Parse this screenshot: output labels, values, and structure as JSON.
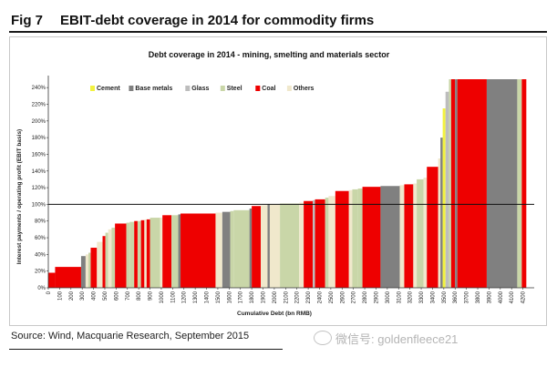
{
  "header": {
    "fig_num": "Fig 7",
    "fig_title": "EBIT-debt coverage in 2014 for commodity firms"
  },
  "footer": {
    "source": "Source: Wind, Macquarie Research, September 2015",
    "watermark": "微信号: goldenfleece21"
  },
  "colors": {
    "Cement": "#f2f240",
    "Base metals": "#808080",
    "Glass": "#bdbdbd",
    "Steel": "#c9d6a8",
    "Coal": "#ee0000",
    "Others": "#f0e8cc"
  },
  "chart_data": {
    "type": "bar",
    "subtype": "variable-width",
    "title": "Debt coverage in 2014 - mining, smelting and materials sector",
    "xlabel": "Cumulative Debt (bn RMB)",
    "ylabel": "Interest payments / operating profit (EBIT basis)",
    "xlim": [
      0,
      4300
    ],
    "ylim": [
      0,
      2.5
    ],
    "x_ticks": [
      0,
      100,
      200,
      300,
      400,
      500,
      600,
      700,
      800,
      900,
      1000,
      1100,
      1200,
      1300,
      1400,
      1500,
      1600,
      1700,
      1800,
      1900,
      2000,
      2100,
      2200,
      2300,
      2400,
      2500,
      2600,
      2700,
      2800,
      2900,
      3000,
      3100,
      3200,
      3300,
      3400,
      3500,
      3600,
      3700,
      3800,
      3900,
      4000,
      4100,
      4200
    ],
    "y_ticks": [
      "0%",
      "20%",
      "40%",
      "60%",
      "80%",
      "100%",
      "120%",
      "140%",
      "160%",
      "180%",
      "200%",
      "220%",
      "240%"
    ],
    "reference_line": 1.0,
    "legend": [
      "Cement",
      "Base metals",
      "Glass",
      "Steel",
      "Coal",
      "Others"
    ],
    "segments": [
      {
        "x0": 0,
        "x1": 60,
        "y": 0.18,
        "cat": "Coal"
      },
      {
        "x0": 60,
        "x1": 290,
        "y": 0.25,
        "cat": "Coal"
      },
      {
        "x0": 290,
        "x1": 330,
        "y": 0.38,
        "cat": "Base metals"
      },
      {
        "x0": 330,
        "x1": 355,
        "y": 0.4,
        "cat": "Others"
      },
      {
        "x0": 355,
        "x1": 375,
        "y": 0.42,
        "cat": "Steel"
      },
      {
        "x0": 375,
        "x1": 430,
        "y": 0.48,
        "cat": "Coal"
      },
      {
        "x0": 430,
        "x1": 480,
        "y": 0.55,
        "cat": "Others"
      },
      {
        "x0": 480,
        "x1": 505,
        "y": 0.62,
        "cat": "Coal"
      },
      {
        "x0": 505,
        "x1": 530,
        "y": 0.66,
        "cat": "Steel"
      },
      {
        "x0": 530,
        "x1": 560,
        "y": 0.7,
        "cat": "Others"
      },
      {
        "x0": 560,
        "x1": 590,
        "y": 0.72,
        "cat": "Steel"
      },
      {
        "x0": 590,
        "x1": 690,
        "y": 0.77,
        "cat": "Coal"
      },
      {
        "x0": 690,
        "x1": 720,
        "y": 0.78,
        "cat": "Steel"
      },
      {
        "x0": 720,
        "x1": 760,
        "y": 0.79,
        "cat": "Steel"
      },
      {
        "x0": 760,
        "x1": 790,
        "y": 0.8,
        "cat": "Coal"
      },
      {
        "x0": 790,
        "x1": 820,
        "y": 0.8,
        "cat": "Steel"
      },
      {
        "x0": 820,
        "x1": 850,
        "y": 0.81,
        "cat": "Coal"
      },
      {
        "x0": 850,
        "x1": 870,
        "y": 0.82,
        "cat": "Others"
      },
      {
        "x0": 870,
        "x1": 900,
        "y": 0.82,
        "cat": "Coal"
      },
      {
        "x0": 900,
        "x1": 990,
        "y": 0.84,
        "cat": "Steel"
      },
      {
        "x0": 990,
        "x1": 1010,
        "y": 0.84,
        "cat": "Others"
      },
      {
        "x0": 1010,
        "x1": 1090,
        "y": 0.87,
        "cat": "Coal"
      },
      {
        "x0": 1090,
        "x1": 1150,
        "y": 0.87,
        "cat": "Steel"
      },
      {
        "x0": 1150,
        "x1": 1170,
        "y": 0.88,
        "cat": "Base metals"
      },
      {
        "x0": 1170,
        "x1": 1480,
        "y": 0.89,
        "cat": "Coal"
      },
      {
        "x0": 1480,
        "x1": 1540,
        "y": 0.9,
        "cat": "Others"
      },
      {
        "x0": 1540,
        "x1": 1610,
        "y": 0.91,
        "cat": "Base metals"
      },
      {
        "x0": 1610,
        "x1": 1640,
        "y": 0.92,
        "cat": "Steel"
      },
      {
        "x0": 1640,
        "x1": 1780,
        "y": 0.93,
        "cat": "Steel"
      },
      {
        "x0": 1780,
        "x1": 1800,
        "y": 0.95,
        "cat": "Base metals"
      },
      {
        "x0": 1800,
        "x1": 1880,
        "y": 0.98,
        "cat": "Coal"
      },
      {
        "x0": 1880,
        "x1": 1940,
        "y": 0.99,
        "cat": "Others"
      },
      {
        "x0": 1940,
        "x1": 1960,
        "y": 1.0,
        "cat": "Base metals"
      },
      {
        "x0": 1960,
        "x1": 2050,
        "y": 1.0,
        "cat": "Others"
      },
      {
        "x0": 2050,
        "x1": 2220,
        "y": 1.01,
        "cat": "Steel"
      },
      {
        "x0": 2220,
        "x1": 2260,
        "y": 1.02,
        "cat": "Others"
      },
      {
        "x0": 2260,
        "x1": 2340,
        "y": 1.04,
        "cat": "Coal"
      },
      {
        "x0": 2340,
        "x1": 2360,
        "y": 1.05,
        "cat": "Glass"
      },
      {
        "x0": 2360,
        "x1": 2450,
        "y": 1.06,
        "cat": "Coal"
      },
      {
        "x0": 2450,
        "x1": 2480,
        "y": 1.08,
        "cat": "Steel"
      },
      {
        "x0": 2480,
        "x1": 2540,
        "y": 1.1,
        "cat": "Others"
      },
      {
        "x0": 2540,
        "x1": 2660,
        "y": 1.16,
        "cat": "Coal"
      },
      {
        "x0": 2660,
        "x1": 2690,
        "y": 1.17,
        "cat": "Others"
      },
      {
        "x0": 2690,
        "x1": 2740,
        "y": 1.18,
        "cat": "Steel"
      },
      {
        "x0": 2740,
        "x1": 2780,
        "y": 1.19,
        "cat": "Steel"
      },
      {
        "x0": 2780,
        "x1": 2940,
        "y": 1.21,
        "cat": "Coal"
      },
      {
        "x0": 2940,
        "x1": 3110,
        "y": 1.22,
        "cat": "Base metals"
      },
      {
        "x0": 3110,
        "x1": 3150,
        "y": 1.23,
        "cat": "Others"
      },
      {
        "x0": 3150,
        "x1": 3230,
        "y": 1.24,
        "cat": "Coal"
      },
      {
        "x0": 3230,
        "x1": 3260,
        "y": 1.25,
        "cat": "Others"
      },
      {
        "x0": 3260,
        "x1": 3320,
        "y": 1.3,
        "cat": "Steel"
      },
      {
        "x0": 3320,
        "x1": 3350,
        "y": 1.32,
        "cat": "Others"
      },
      {
        "x0": 3350,
        "x1": 3450,
        "y": 1.45,
        "cat": "Coal"
      },
      {
        "x0": 3450,
        "x1": 3470,
        "y": 1.55,
        "cat": "Others"
      },
      {
        "x0": 3470,
        "x1": 3490,
        "y": 1.8,
        "cat": "Base metals"
      },
      {
        "x0": 3490,
        "x1": 3515,
        "y": 2.15,
        "cat": "Cement"
      },
      {
        "x0": 3515,
        "x1": 3545,
        "y": 2.35,
        "cat": "Glass"
      },
      {
        "x0": 3545,
        "x1": 3565,
        "y": 2.5,
        "cat": "Steel"
      },
      {
        "x0": 3565,
        "x1": 3600,
        "y": 2.5,
        "cat": "Coal"
      },
      {
        "x0": 3600,
        "x1": 3620,
        "y": 2.5,
        "cat": "Base metals"
      },
      {
        "x0": 3620,
        "x1": 3880,
        "y": 2.5,
        "cat": "Coal"
      },
      {
        "x0": 3880,
        "x1": 4150,
        "y": 2.5,
        "cat": "Base metals"
      },
      {
        "x0": 4150,
        "x1": 4190,
        "y": 2.5,
        "cat": "Steel"
      },
      {
        "x0": 4190,
        "x1": 4230,
        "y": 2.5,
        "cat": "Coal"
      }
    ]
  }
}
